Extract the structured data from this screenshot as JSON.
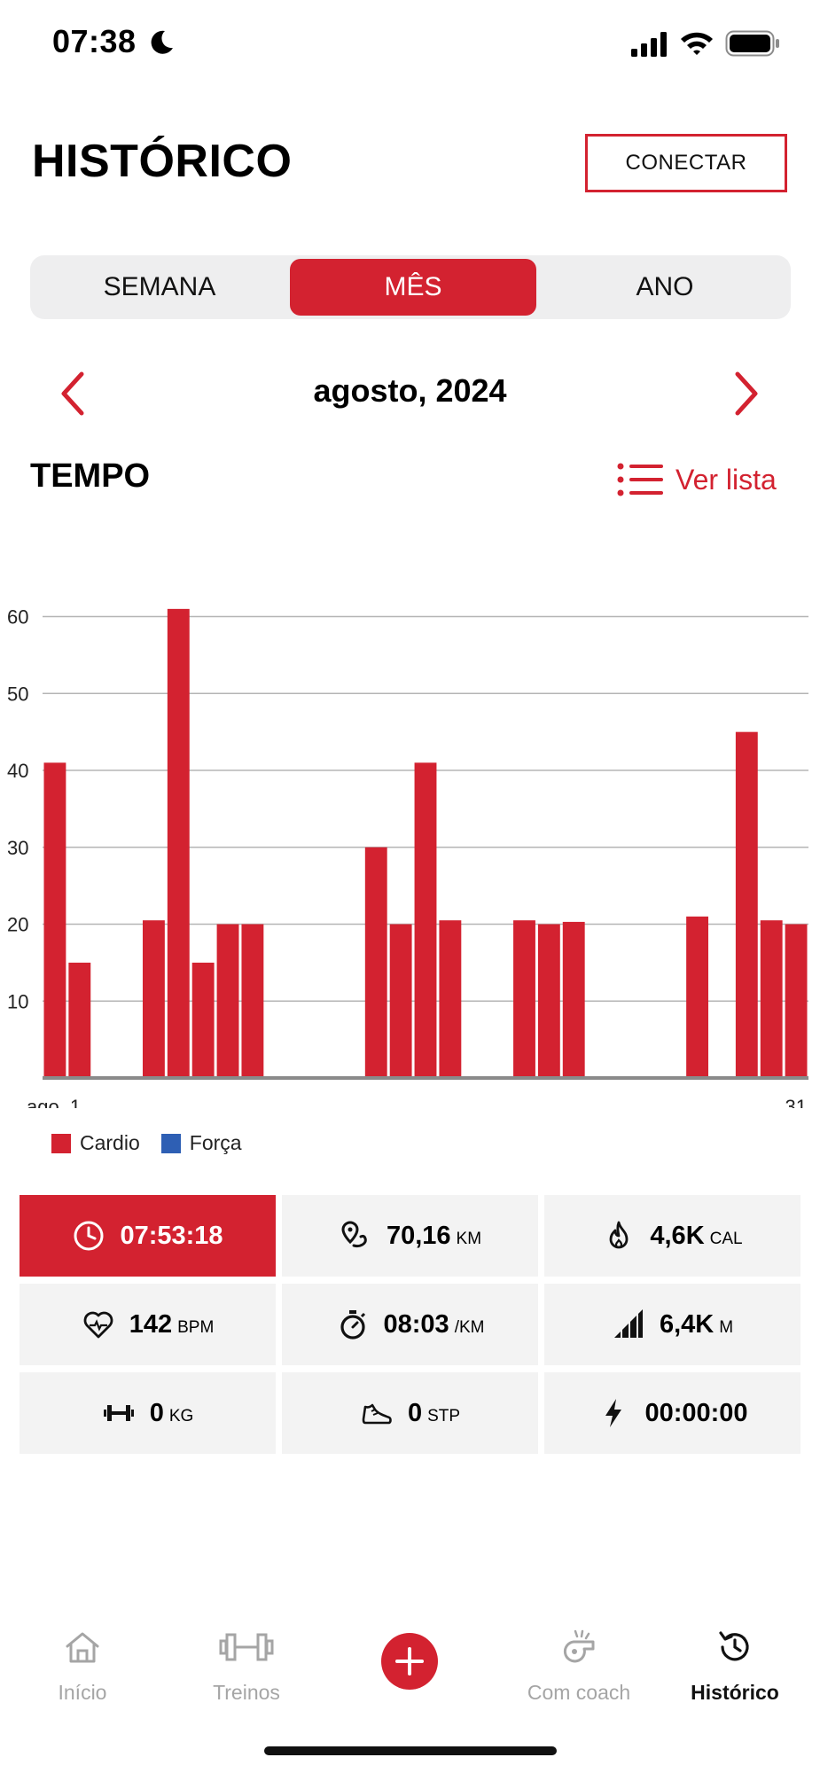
{
  "status_bar": {
    "time": "07:38"
  },
  "header": {
    "title": "HISTÓRICO",
    "connect_label": "CONECTAR"
  },
  "period_tabs": [
    {
      "label": "SEMANA",
      "active": false
    },
    {
      "label": "MÊS",
      "active": true
    },
    {
      "label": "ANO",
      "active": false
    }
  ],
  "month_nav": {
    "label": "agosto, 2024"
  },
  "section": {
    "title": "TEMPO",
    "list_link": "Ver lista"
  },
  "colors": {
    "accent": "#d32230",
    "cardio": "#d32230",
    "forca": "#2e5fb4"
  },
  "chart_data": {
    "type": "bar",
    "title": "",
    "xlabel": "",
    "ylabel": "",
    "x_tick_labels": [
      "ago. 1",
      "31"
    ],
    "yticks": [
      10,
      20,
      30,
      40,
      50,
      60
    ],
    "ylim": [
      0,
      62
    ],
    "grid": true,
    "legend_placement": "bottom-left",
    "x": [
      1,
      2,
      3,
      4,
      5,
      6,
      7,
      8,
      9,
      10,
      11,
      12,
      13,
      14,
      15,
      16,
      17,
      18,
      19,
      20,
      21,
      22,
      23,
      24,
      25,
      26,
      27,
      28,
      29,
      30,
      31
    ],
    "series": [
      {
        "name": "Cardio",
        "color": "#d32230",
        "values": [
          41,
          15,
          0,
          0,
          20.5,
          61,
          15,
          20,
          20,
          0,
          0,
          0,
          0,
          30,
          20,
          41,
          20.5,
          0,
          0,
          20.5,
          20,
          20.3,
          0,
          0,
          0,
          0,
          21,
          0,
          45,
          20.5,
          20
        ]
      },
      {
        "name": "Força",
        "color": "#2e5fb4",
        "values": [
          0,
          0,
          0,
          0,
          0,
          0,
          0,
          0,
          0,
          0,
          0,
          0,
          0,
          0,
          0,
          0,
          0,
          0,
          0,
          0,
          0,
          0,
          0,
          0,
          0,
          0,
          0,
          0,
          0,
          0,
          0
        ]
      }
    ]
  },
  "stats": [
    {
      "icon": "clock-icon",
      "value": "07:53:18",
      "unit": "",
      "active": true
    },
    {
      "icon": "route-icon",
      "value": "70,16",
      "unit": "KM",
      "active": false
    },
    {
      "icon": "flame-icon",
      "value": "4,6K",
      "unit": "CAL",
      "active": false
    },
    {
      "icon": "heart-rate-icon",
      "value": "142",
      "unit": "BPM",
      "active": false
    },
    {
      "icon": "stopwatch-icon",
      "value": "08:03",
      "unit": "/KM",
      "active": false
    },
    {
      "icon": "elevation-icon",
      "value": "6,4K",
      "unit": "M",
      "active": false
    },
    {
      "icon": "dumbbell-icon",
      "value": "0",
      "unit": "KG",
      "active": false
    },
    {
      "icon": "shoe-icon",
      "value": "0",
      "unit": "STP",
      "active": false
    },
    {
      "icon": "lightning-icon",
      "value": "00:00:00",
      "unit": "",
      "active": false
    }
  ],
  "tab_bar": [
    {
      "label": "Início",
      "icon": "home-icon",
      "active": false
    },
    {
      "label": "Treinos",
      "icon": "dumbbell-icon",
      "active": false
    },
    {
      "label": "",
      "icon": "plus-icon",
      "active": false
    },
    {
      "label": "Com coach",
      "icon": "whistle-icon",
      "active": false
    },
    {
      "label": "Histórico",
      "icon": "history-icon",
      "active": true
    }
  ]
}
